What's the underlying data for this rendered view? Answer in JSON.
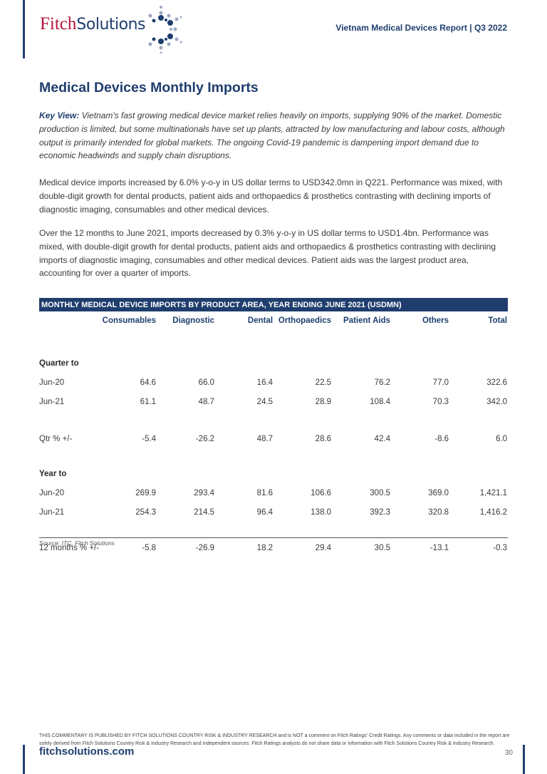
{
  "header": {
    "logo_text": "FitchSolutions",
    "logo_part1": "Fitch",
    "logo_part2": "Solutions",
    "report_title": "Vietnam Medical Devices Report | Q3 2022"
  },
  "section_title": "Medical Devices Monthly Imports",
  "key_view_label": "Key View:",
  "key_view_text": " Vietnam's fast growing medical device market relies heavily on imports, supplying 90% of the market. Domestic production is limited, but some multinationals have set up plants, attracted by low manufacturing and labour costs, although output is primarily intended for global markets. The ongoing Covid-19 pandemic is dampening import demand due to economic headwinds and supply chain disruptions.",
  "paragraphs": [
    "Medical device imports increased by 6.0% y-o-y in US dollar terms to USD342.0mn in Q221. Performance was mixed, with double-digit growth for dental products, patient aids and orthopaedics & prosthetics contrasting with declining imports of diagnostic imaging, consumables and other medical devices.",
    "Over the 12 months to June 2021, imports decreased by 0.3% y-o-y in US dollar terms to USD1.4bn. Performance was mixed, with double-digit growth for dental products, patient aids and orthopaedics & prosthetics contrasting with declining imports of diagnostic imaging, consumables and other medical devices. Patient aids was the largest product area, accounting for over a quarter of imports."
  ],
  "table": {
    "title": "MONTHLY MEDICAL DEVICE IMPORTS BY PRODUCT AREA, YEAR ENDING JUNE 2021 (USDMN)",
    "columns": [
      "",
      "Consumables",
      "Diagnostic",
      "Dental",
      "Orthopaedics",
      "Patient Aids",
      "Others",
      "Total"
    ],
    "rows": [
      [
        "Quarter to",
        "",
        "",
        "",
        "",
        "",
        "",
        ""
      ],
      [
        "Jun-20",
        "64.6",
        "66.0",
        "16.4",
        "22.5",
        "76.2",
        "77.0",
        "322.6"
      ],
      [
        "Jun-21",
        "61.1",
        "48.7",
        "24.5",
        "28.9",
        "108.4",
        "70.3",
        "342.0"
      ],
      [
        "Qtr % +/-",
        "-5.4",
        "-26.2",
        "48.7",
        "28.6",
        "42.4",
        "-8.6",
        "6.0"
      ],
      [
        "Year to",
        "",
        "",
        "",
        "",
        "",
        "",
        ""
      ],
      [
        "Jun-20",
        "269.9",
        "293.4",
        "81.6",
        "106.6",
        "300.5",
        "369.0",
        "1,421.1"
      ],
      [
        "Jun-21",
        "254.3",
        "214.5",
        "96.4",
        "138.0",
        "392.3",
        "320.8",
        "1,416.2"
      ],
      [
        "12 months % +/-",
        "-5.8",
        "-26.9",
        "18.2",
        "29.4",
        "30.5",
        "-13.1",
        "-0.3"
      ]
    ],
    "source": "Source: ITC, Fitch Solutions"
  },
  "footer": {
    "disclaimer": "THIS COMMENTARY IS PUBLISHED BY FITCH SOLUTIONS COUNTRY RISK & INDUSTRY RESEARCH and is NOT a comment on Fitch Ratings' Credit Ratings. Any comments or data included in the report are solely derived from Fitch Solutions Country Risk & Industry Research and independent sources. Fitch Ratings analysts do not share data or information with Fitch Solutions Country Risk & Industry Research.",
    "website": "fitchsolutions.com",
    "page_number": "30"
  },
  "colors": {
    "brand_navy": "#1f3e6e",
    "brand_red": "#b5143c"
  }
}
